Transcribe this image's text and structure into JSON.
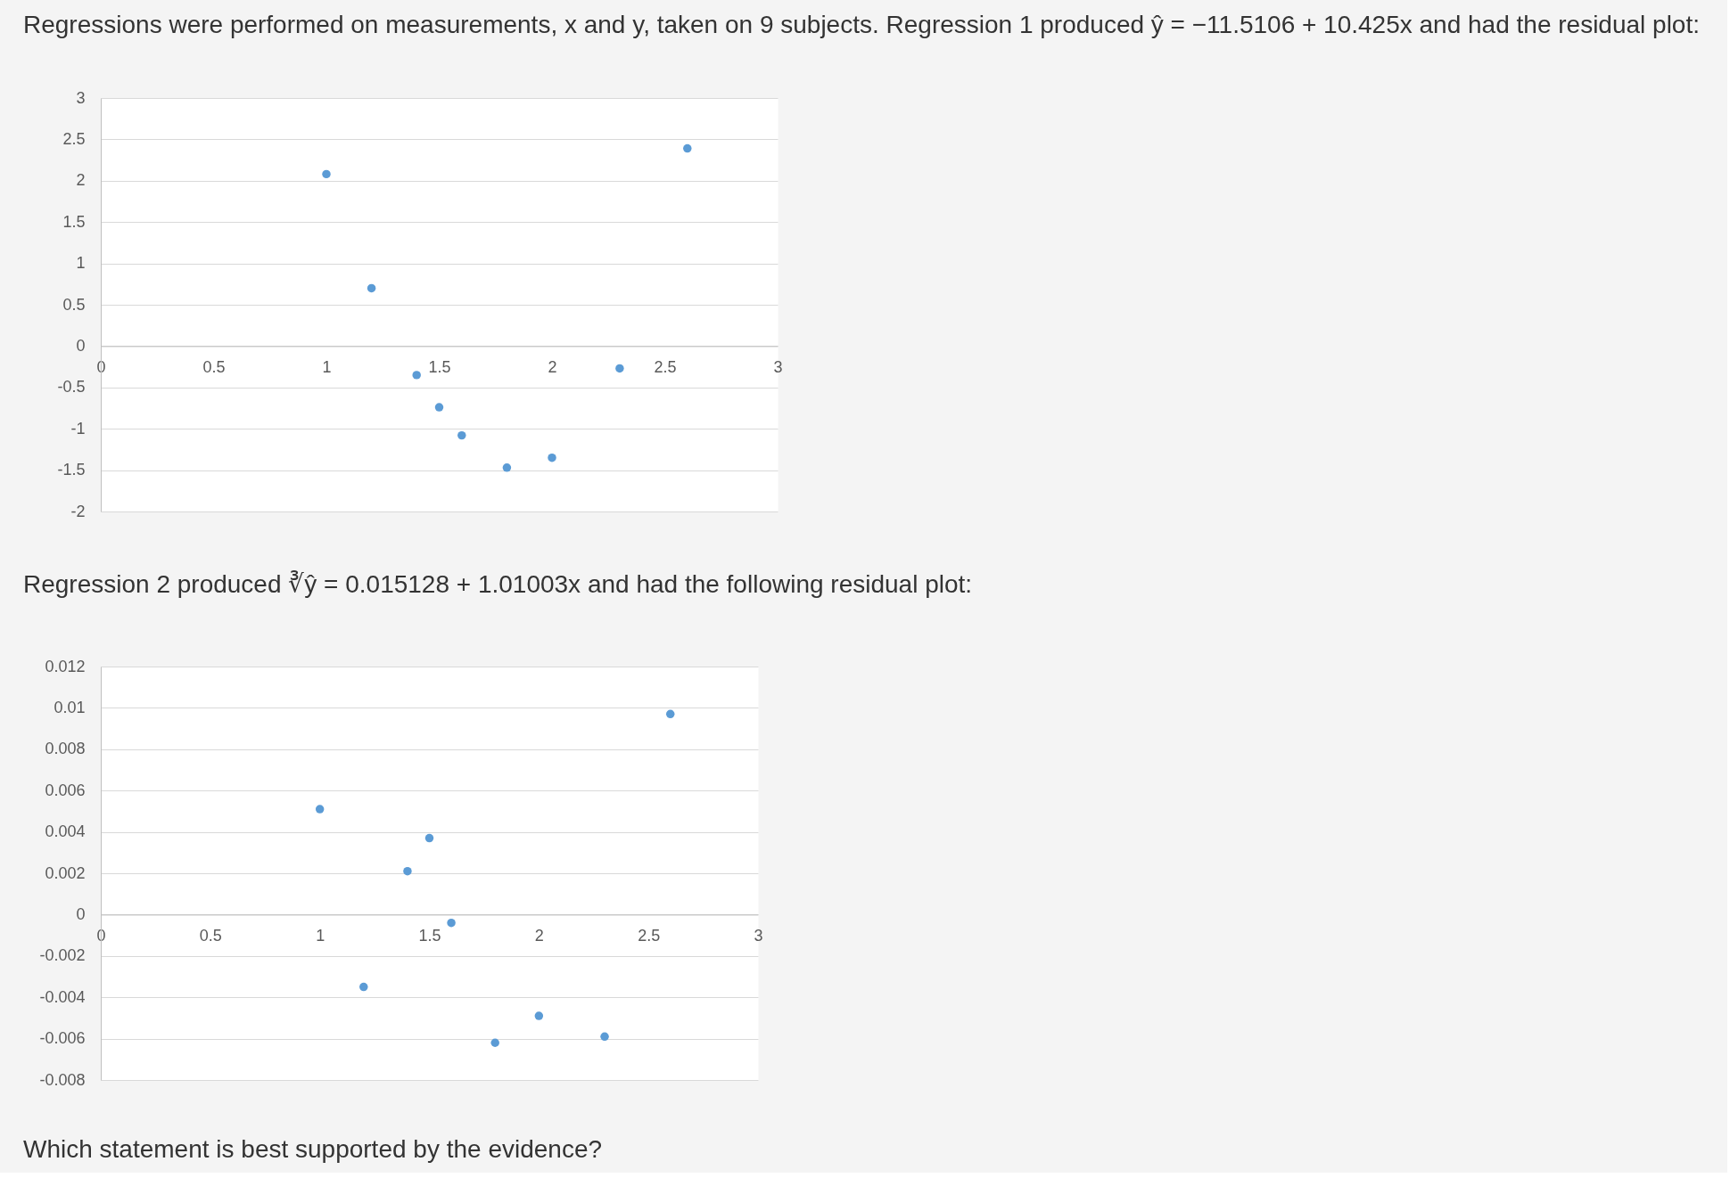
{
  "chart_data": [
    {
      "type": "scatter",
      "title": "Regressions were performed on measurements, x and y, taken on 9 subjects. Regression 1 produced ŷ = −11.5106 + 10.425x and had the residual plot:",
      "x": [
        1,
        1.2,
        1.4,
        1.5,
        1.6,
        1.8,
        2,
        2.3,
        2.6
      ],
      "series": [
        {
          "color": "#5b9bd5",
          "values": [
            2.08,
            0.7,
            -0.35,
            -0.74,
            -1.08,
            -1.47,
            -1.35,
            -0.27,
            2.39
          ]
        }
      ],
      "xlim": [
        0,
        3
      ],
      "xticks": [
        0,
        0.5,
        1,
        1.5,
        2,
        2.5,
        3
      ],
      "ylim": [
        -2,
        3
      ],
      "yticks": [
        -2,
        -1.5,
        -1,
        -0.5,
        0,
        0.5,
        1,
        1.5,
        2,
        2.5,
        3
      ],
      "grid": "y",
      "marker": "circle"
    },
    {
      "type": "scatter",
      "title": "Regression 2 produced ∛ŷ = 0.015128 + 1.01003x and had the following residual plot:",
      "x": [
        1,
        1.2,
        1.4,
        1.5,
        1.6,
        1.8,
        2,
        2.3,
        2.6
      ],
      "series": [
        {
          "color": "#5b9bd5",
          "values": [
            0.0051,
            -0.0035,
            0.0021,
            0.0037,
            -0.0004,
            -0.0062,
            -0.0049,
            -0.0059,
            0.0097
          ]
        }
      ],
      "xlim": [
        0,
        3
      ],
      "xticks": [
        0,
        0.5,
        1,
        1.5,
        2,
        2.5,
        3
      ],
      "ylim": [
        -0.008,
        0.012
      ],
      "yticks": [
        -0.008,
        -0.006,
        -0.004,
        -0.002,
        0,
        0.002,
        0.004,
        0.006,
        0.008,
        0.01,
        0.012
      ],
      "grid": "y",
      "marker": "circle",
      "annotations": [
        "Which statement is best supported by the evidence?"
      ]
    }
  ]
}
